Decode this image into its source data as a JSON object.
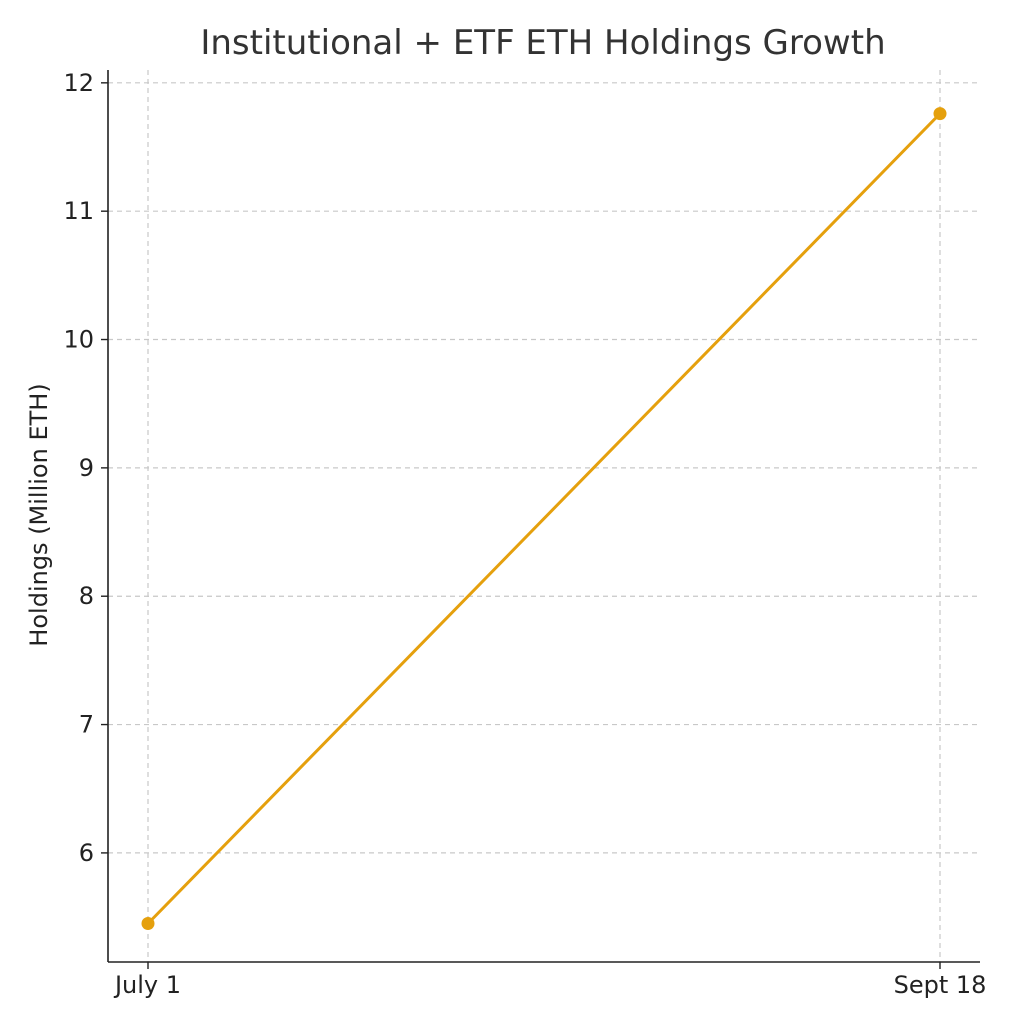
{
  "chart_data": {
    "type": "line",
    "title": "Institutional + ETF ETH Holdings Growth",
    "xlabel": "",
    "ylabel": "Holdings (Million ETH)",
    "categories": [
      "July 1",
      "Sept 18"
    ],
    "series": [
      {
        "values": [
          5.45,
          11.76
        ],
        "color": "#E5A00D"
      }
    ],
    "ylim": [
      5.15,
      12.1
    ],
    "yticks": [
      6,
      7,
      8,
      9,
      10,
      11,
      12
    ],
    "grid": true,
    "legend": "none"
  }
}
